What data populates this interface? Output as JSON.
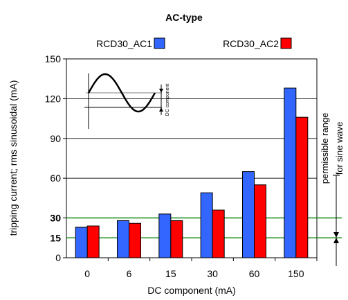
{
  "chart_data": {
    "type": "bar",
    "title": "AC-type",
    "xlabel": "DC component (mA)",
    "ylabel": "tripping current; rms sinusoidal (mA)",
    "categories": [
      "0",
      "6",
      "15",
      "30",
      "60",
      "150"
    ],
    "series": [
      {
        "name": "RCD30_AC1",
        "color": "#3366ff",
        "values": [
          23,
          28,
          33,
          49,
          65,
          128
        ]
      },
      {
        "name": "RCD30_AC2",
        "color": "#ff0000",
        "values": [
          24,
          26,
          28,
          36,
          55,
          106
        ]
      }
    ],
    "ylim": [
      0,
      150
    ],
    "yticks": [
      0,
      30,
      60,
      90,
      120,
      150
    ],
    "extra_ticks": [
      "15",
      "30"
    ],
    "gridlines": [
      30,
      60,
      90,
      120
    ],
    "reference_lines": [
      {
        "value": 15,
        "label": "15",
        "color": "#008000"
      },
      {
        "value": 30,
        "label": "30",
        "color": "#008000"
      }
    ],
    "legend_position": "top",
    "annotations": {
      "inset_label": "DC component",
      "range_line1": "permissible range",
      "range_line2": "for sine wave"
    }
  }
}
